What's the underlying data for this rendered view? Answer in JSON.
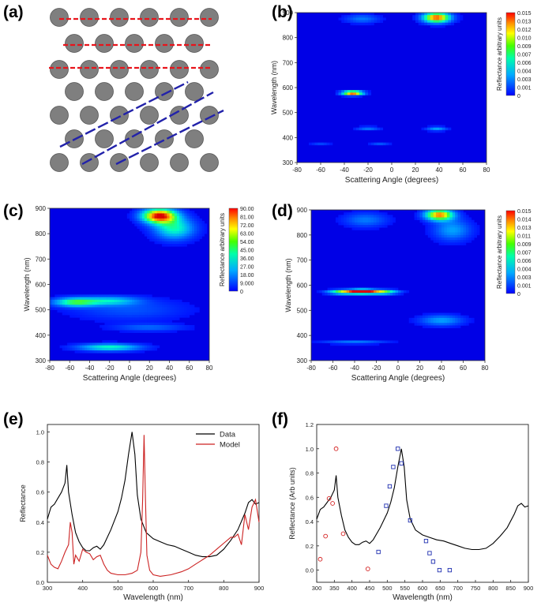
{
  "panel_labels": {
    "a": "(a)",
    "b": "(b)",
    "c": "(c)",
    "d": "(d)",
    "e": "(e)",
    "f": "(f)"
  },
  "colors": {
    "circle_fill": "#7f7f7f",
    "circle_stroke": "#555555",
    "red_line": "#e8141b",
    "blue_line": "#2222aa",
    "data_line": "#000000",
    "model_line": "#cc2222",
    "blue_square": "#1f2fb0",
    "red_circle": "#d42020"
  },
  "lattice": {
    "rows": 6,
    "description_lines_red": 3,
    "description_lines_blue": 3
  },
  "chart_data": [
    {
      "panel": "b",
      "type": "heatmap",
      "xlabel": "Scattering Angle (degrees)",
      "ylabel": "Wavelength (nm)",
      "xlim": [
        -80,
        80
      ],
      "ylim": [
        300,
        900
      ],
      "xticks": [
        "-80",
        "-60",
        "-40",
        "-20",
        "0",
        "20",
        "40",
        "60",
        "80"
      ],
      "yticks": [
        "300",
        "400",
        "500",
        "600",
        "700",
        "800",
        "900"
      ],
      "colorbar_label": "Reflectance arbitrary units",
      "colorbar_ticks": [
        "0.015",
        "0.013",
        "0.012",
        "0.010",
        "0.009",
        "0.007",
        "0.006",
        "0.004",
        "0.003",
        "0.001",
        "0"
      ],
      "hotspots": [
        {
          "x": 38,
          "y": 880,
          "intensity": 0.014,
          "sx": 8,
          "sy": 14
        },
        {
          "x": -33,
          "y": 578,
          "intensity": 0.015,
          "sx": 6,
          "sy": 6
        },
        {
          "x": 38,
          "y": 435,
          "intensity": 0.004,
          "sx": 6,
          "sy": 6
        },
        {
          "x": -20,
          "y": 437,
          "intensity": 0.003,
          "sx": 7,
          "sy": 5
        },
        {
          "x": -60,
          "y": 373,
          "intensity": 0.002,
          "sx": 6,
          "sy": 3
        },
        {
          "x": -10,
          "y": 375,
          "intensity": 0.002,
          "sx": 6,
          "sy": 3
        },
        {
          "x": -25,
          "y": 875,
          "intensity": 0.003,
          "sx": 10,
          "sy": 12
        }
      ]
    },
    {
      "panel": "c",
      "type": "heatmap",
      "xlabel": "Scattering Angle (degrees)",
      "ylabel": "Wavelength (nm)",
      "xlim": [
        -80,
        80
      ],
      "ylim": [
        300,
        900
      ],
      "xticks": [
        "-80",
        "-60",
        "-40",
        "-20",
        "0",
        "20",
        "40",
        "60",
        "80"
      ],
      "yticks": [
        "300",
        "400",
        "500",
        "600",
        "700",
        "800",
        "900"
      ],
      "colorbar_label": "Reflectance arbitrary units",
      "colorbar_ticks": [
        "90.00",
        "81.00",
        "72.00",
        "63.00",
        "54.00",
        "45.00",
        "36.00",
        "27.00",
        "18.00",
        "9.000",
        "0"
      ],
      "hotspots": [
        {
          "x": 30,
          "y": 870,
          "intensity": 90,
          "sx": 12,
          "sy": 20
        },
        {
          "x": 45,
          "y": 820,
          "intensity": 40,
          "sx": 14,
          "sy": 30
        },
        {
          "x": -55,
          "y": 530,
          "intensity": 45,
          "sx": 15,
          "sy": 12
        },
        {
          "x": -20,
          "y": 535,
          "intensity": 30,
          "sx": 20,
          "sy": 12
        },
        {
          "x": -20,
          "y": 352,
          "intensity": 40,
          "sx": 22,
          "sy": 10
        },
        {
          "x": 20,
          "y": 430,
          "intensity": 15,
          "sx": 25,
          "sy": 10
        },
        {
          "x": 0,
          "y": 500,
          "intensity": 12,
          "sx": 40,
          "sy": 30
        }
      ]
    },
    {
      "panel": "d",
      "type": "heatmap",
      "xlabel": "Scattering Angle (degrees)",
      "ylabel": "Wavelength (nm)",
      "xlim": [
        -80,
        80
      ],
      "ylim": [
        300,
        900
      ],
      "xticks": [
        "-80",
        "-60",
        "-40",
        "-20",
        "0",
        "20",
        "40",
        "60",
        "80"
      ],
      "yticks": [
        "300",
        "400",
        "500",
        "600",
        "700",
        "800",
        "900"
      ],
      "colorbar_label": "Reflectance arbitrary units",
      "colorbar_ticks": [
        "0.015",
        "0.014",
        "0.013",
        "0.011",
        "0.009",
        "0.007",
        "0.006",
        "0.004",
        "0.003",
        "0.001",
        "0"
      ],
      "hotspots": [
        {
          "x": 38,
          "y": 880,
          "intensity": 0.013,
          "sx": 9,
          "sy": 15
        },
        {
          "x": -33,
          "y": 575,
          "intensity": 0.015,
          "sx": 8,
          "sy": 6
        },
        {
          "x": -50,
          "y": 573,
          "intensity": 0.01,
          "sx": 10,
          "sy": 6
        },
        {
          "x": -15,
          "y": 573,
          "intensity": 0.01,
          "sx": 10,
          "sy": 6
        },
        {
          "x": 40,
          "y": 460,
          "intensity": 0.004,
          "sx": 14,
          "sy": 15
        },
        {
          "x": -40,
          "y": 372,
          "intensity": 0.004,
          "sx": 20,
          "sy": 4
        },
        {
          "x": 50,
          "y": 820,
          "intensity": 0.004,
          "sx": 12,
          "sy": 30
        },
        {
          "x": -30,
          "y": 860,
          "intensity": 0.003,
          "sx": 14,
          "sy": 20
        }
      ]
    },
    {
      "panel": "e",
      "type": "line",
      "xlabel": "Wavelength (nm)",
      "ylabel": "Reflectance",
      "xlim": [
        300,
        900
      ],
      "ylim": [
        0,
        1.05
      ],
      "xticks": [
        "300",
        "400",
        "500",
        "600",
        "700",
        "800",
        "900"
      ],
      "yticks": [
        "0.0",
        "0.2",
        "0.4",
        "0.6",
        "0.8",
        "1.0"
      ],
      "legend_position": "top-right",
      "series": [
        {
          "name": "Data",
          "x": [
            300,
            310,
            320,
            330,
            340,
            350,
            355,
            360,
            370,
            380,
            390,
            400,
            410,
            420,
            430,
            440,
            450,
            460,
            480,
            500,
            510,
            520,
            530,
            540,
            548,
            555,
            565,
            580,
            600,
            620,
            640,
            660,
            680,
            700,
            720,
            740,
            760,
            780,
            800,
            820,
            840,
            860,
            870,
            880,
            890,
            900
          ],
          "y": [
            0.42,
            0.5,
            0.52,
            0.56,
            0.6,
            0.66,
            0.78,
            0.6,
            0.45,
            0.33,
            0.27,
            0.23,
            0.21,
            0.21,
            0.23,
            0.24,
            0.22,
            0.25,
            0.35,
            0.47,
            0.56,
            0.68,
            0.85,
            1.0,
            0.85,
            0.58,
            0.42,
            0.33,
            0.29,
            0.27,
            0.25,
            0.24,
            0.22,
            0.2,
            0.18,
            0.17,
            0.17,
            0.18,
            0.22,
            0.28,
            0.35,
            0.46,
            0.53,
            0.55,
            0.52,
            0.53
          ]
        },
        {
          "name": "Model",
          "x": [
            300,
            310,
            320,
            330,
            340,
            350,
            360,
            365,
            370,
            375,
            380,
            390,
            400,
            410,
            420,
            430,
            440,
            450,
            460,
            470,
            480,
            500,
            520,
            540,
            555,
            565,
            570,
            574,
            578,
            582,
            590,
            600,
            620,
            650,
            680,
            700,
            720,
            740,
            760,
            780,
            800,
            820,
            830,
            840,
            850,
            860,
            870,
            880,
            890,
            900
          ],
          "y": [
            0.18,
            0.12,
            0.1,
            0.09,
            0.14,
            0.2,
            0.25,
            0.4,
            0.33,
            0.12,
            0.18,
            0.14,
            0.22,
            0.2,
            0.19,
            0.15,
            0.17,
            0.18,
            0.12,
            0.08,
            0.06,
            0.05,
            0.05,
            0.06,
            0.08,
            0.2,
            0.55,
            0.98,
            0.55,
            0.18,
            0.08,
            0.05,
            0.04,
            0.05,
            0.07,
            0.09,
            0.12,
            0.15,
            0.18,
            0.22,
            0.26,
            0.3,
            0.3,
            0.32,
            0.25,
            0.45,
            0.35,
            0.5,
            0.55,
            0.4
          ]
        }
      ]
    },
    {
      "panel": "f",
      "type": "scatter",
      "xlabel": "Wavelength (nm)",
      "ylabel": "Reflectance (Arb units)",
      "xlim": [
        300,
        900
      ],
      "ylim": [
        -0.1,
        1.2
      ],
      "xticks": [
        "300",
        "350",
        "400",
        "450",
        "500",
        "550",
        "600",
        "650",
        "700",
        "750",
        "800",
        "850",
        "900"
      ],
      "yticks": [
        "0.0",
        "0.2",
        "0.4",
        "0.6",
        "0.8",
        "1.0",
        "1.2"
      ],
      "series": [
        {
          "name": "Data",
          "kind": "line",
          "x": [
            300,
            310,
            320,
            330,
            340,
            350,
            355,
            360,
            370,
            380,
            390,
            400,
            410,
            420,
            430,
            440,
            450,
            460,
            480,
            500,
            510,
            520,
            530,
            540,
            548,
            555,
            565,
            580,
            600,
            620,
            640,
            660,
            680,
            700,
            720,
            740,
            760,
            780,
            800,
            820,
            840,
            860,
            870,
            880,
            890,
            900
          ],
          "y": [
            0.42,
            0.5,
            0.52,
            0.56,
            0.6,
            0.66,
            0.78,
            0.6,
            0.45,
            0.33,
            0.27,
            0.23,
            0.21,
            0.21,
            0.23,
            0.24,
            0.22,
            0.25,
            0.35,
            0.47,
            0.56,
            0.68,
            0.85,
            1.0,
            0.85,
            0.58,
            0.42,
            0.33,
            0.29,
            0.27,
            0.25,
            0.24,
            0.22,
            0.2,
            0.18,
            0.17,
            0.17,
            0.18,
            0.22,
            0.28,
            0.35,
            0.46,
            0.53,
            0.55,
            0.52,
            0.53
          ]
        },
        {
          "name": "red circles",
          "kind": "circle",
          "x": [
            310,
            325,
            335,
            345,
            355,
            375,
            445
          ],
          "y": [
            0.09,
            0.28,
            0.59,
            0.55,
            1.0,
            0.3,
            0.01
          ]
        },
        {
          "name": "blue squares",
          "kind": "square",
          "x": [
            475,
            497,
            507,
            517,
            530,
            540,
            565,
            610,
            620,
            630,
            648,
            677
          ],
          "y": [
            0.15,
            0.53,
            0.69,
            0.85,
            1.0,
            0.88,
            0.41,
            0.24,
            0.14,
            0.07,
            0.0,
            0.0
          ]
        }
      ]
    }
  ]
}
